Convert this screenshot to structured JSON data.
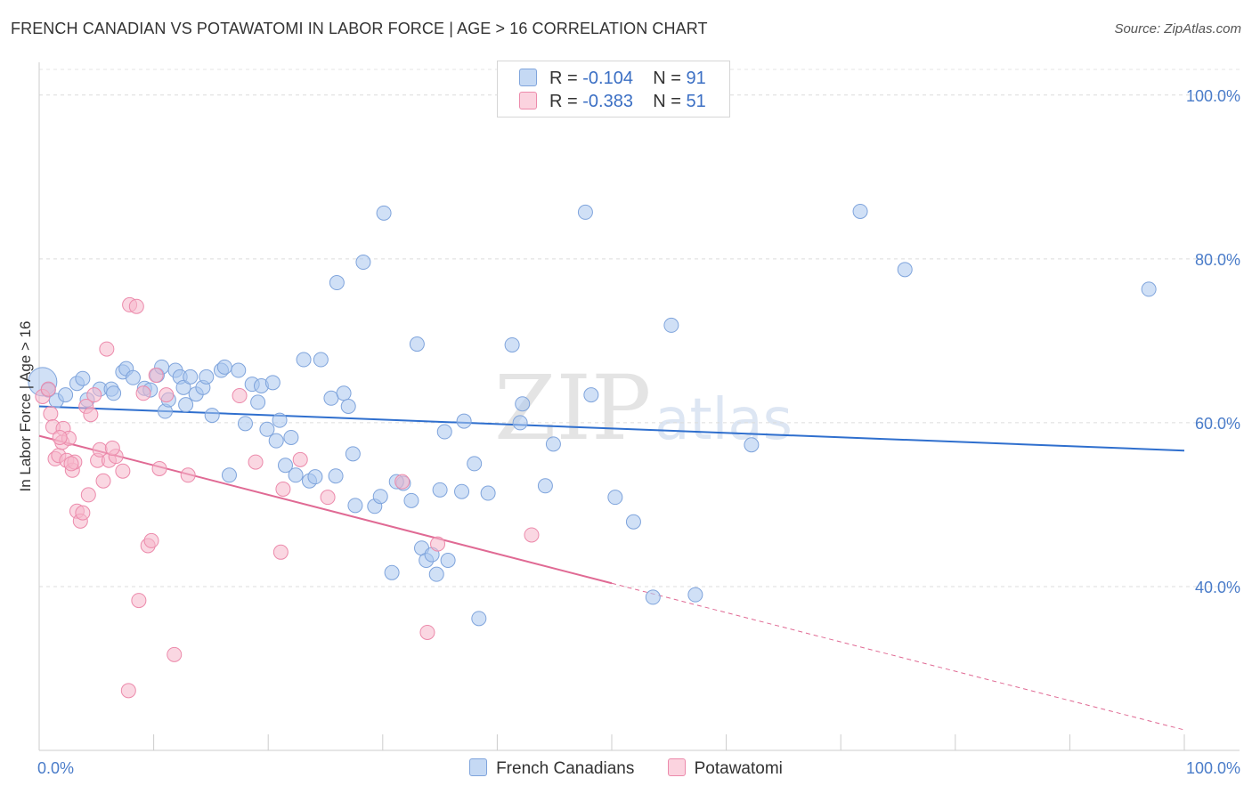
{
  "title": "FRENCH CANADIAN VS POTAWATOMI IN LABOR FORCE | AGE > 16 CORRELATION CHART",
  "source": "Source: ZipAtlas.com",
  "watermark": {
    "zip": "ZIP",
    "atlas": "atlas"
  },
  "legend": {
    "r_label": "R = ",
    "n_label": "N = ",
    "rows": [
      {
        "r": "-0.104",
        "n": "91"
      },
      {
        "r": "-0.383",
        "n": "51"
      }
    ]
  },
  "colors": {
    "blue_fill": "#a9c6ee",
    "blue_stroke": "#7fa4dc",
    "blue_line": "#2f6fce",
    "pink_fill": "#f6b7cb",
    "pink_stroke": "#ec8aab",
    "pink_line": "#e06a94"
  },
  "chart_data": {
    "type": "scatter",
    "title": "FRENCH CANADIAN VS POTAWATOMI IN LABOR FORCE | AGE > 16 CORRELATION CHART",
    "xlabel": "",
    "ylabel": "In Labor Force | Age > 16",
    "xlim": [
      0,
      100
    ],
    "ylim": [
      20,
      104
    ],
    "x_tick_labels": [
      "0.0%",
      "100.0%"
    ],
    "y_ticks": [
      40,
      60,
      80,
      100
    ],
    "y_tick_labels": [
      "40.0%",
      "60.0%",
      "80.0%",
      "100.0%"
    ],
    "grid": true,
    "legend_position": "top-center",
    "series": [
      {
        "name": "French Canadians",
        "color": "#a9c6ee",
        "trend": {
          "x0": 0,
          "y0": 62.0,
          "x1": 100,
          "y1": 56.6
        },
        "points": [
          [
            0.3,
            65.0
          ],
          [
            0.8,
            64.0
          ],
          [
            1.5,
            62.7
          ],
          [
            2.3,
            63.4
          ],
          [
            3.3,
            64.8
          ],
          [
            3.8,
            65.4
          ],
          [
            4.2,
            62.8
          ],
          [
            5.3,
            64.1
          ],
          [
            6.3,
            64.1
          ],
          [
            6.5,
            63.6
          ],
          [
            7.3,
            66.2
          ],
          [
            7.6,
            66.6
          ],
          [
            8.2,
            65.5
          ],
          [
            9.2,
            64.2
          ],
          [
            9.7,
            64.0
          ],
          [
            10.3,
            65.8
          ],
          [
            10.7,
            66.8
          ],
          [
            11.0,
            61.4
          ],
          [
            11.3,
            62.8
          ],
          [
            11.9,
            66.4
          ],
          [
            12.3,
            65.6
          ],
          [
            12.6,
            64.3
          ],
          [
            12.8,
            62.2
          ],
          [
            13.2,
            65.6
          ],
          [
            13.7,
            63.5
          ],
          [
            14.3,
            64.3
          ],
          [
            14.6,
            65.6
          ],
          [
            15.1,
            60.9
          ],
          [
            15.9,
            66.4
          ],
          [
            16.2,
            66.8
          ],
          [
            16.6,
            53.6
          ],
          [
            17.4,
            66.4
          ],
          [
            18.0,
            59.9
          ],
          [
            18.6,
            64.7
          ],
          [
            19.1,
            62.5
          ],
          [
            19.4,
            64.5
          ],
          [
            19.9,
            59.2
          ],
          [
            20.4,
            64.9
          ],
          [
            21.0,
            60.3
          ],
          [
            21.5,
            54.8
          ],
          [
            22.0,
            58.2
          ],
          [
            22.4,
            53.6
          ],
          [
            23.1,
            67.7
          ],
          [
            23.6,
            52.9
          ],
          [
            24.1,
            53.4
          ],
          [
            24.6,
            67.7
          ],
          [
            25.5,
            63.0
          ],
          [
            25.9,
            53.5
          ],
          [
            26.0,
            77.1
          ],
          [
            26.6,
            63.6
          ],
          [
            27.0,
            62.0
          ],
          [
            27.6,
            49.9
          ],
          [
            28.3,
            79.6
          ],
          [
            29.3,
            49.8
          ],
          [
            30.1,
            85.6
          ],
          [
            30.8,
            41.7
          ],
          [
            31.8,
            52.6
          ],
          [
            32.5,
            50.5
          ],
          [
            33.0,
            69.6
          ],
          [
            33.4,
            44.7
          ],
          [
            33.8,
            43.2
          ],
          [
            34.3,
            43.9
          ],
          [
            34.7,
            41.5
          ],
          [
            35.0,
            51.8
          ],
          [
            35.4,
            58.9
          ],
          [
            35.7,
            43.2
          ],
          [
            36.9,
            51.6
          ],
          [
            38.0,
            55.0
          ],
          [
            38.4,
            36.1
          ],
          [
            39.2,
            51.4
          ],
          [
            41.3,
            69.5
          ],
          [
            42.2,
            62.3
          ],
          [
            42.0,
            60.0
          ],
          [
            44.2,
            52.3
          ],
          [
            44.9,
            57.4
          ],
          [
            47.7,
            85.7
          ],
          [
            50.3,
            50.9
          ],
          [
            51.9,
            47.9
          ],
          [
            53.6,
            38.7
          ],
          [
            55.2,
            71.9
          ],
          [
            57.3,
            39.0
          ],
          [
            62.2,
            57.3
          ],
          [
            71.7,
            85.8
          ],
          [
            75.6,
            78.7
          ],
          [
            96.9,
            76.3
          ],
          [
            29.8,
            51.0
          ],
          [
            20.7,
            57.8
          ],
          [
            31.2,
            52.8
          ],
          [
            48.2,
            63.4
          ],
          [
            37.1,
            60.2
          ],
          [
            27.4,
            56.2
          ]
        ]
      },
      {
        "name": "Potawatomi",
        "color": "#f6b7cb",
        "trend": {
          "x0": 0,
          "y0": 58.4,
          "x1": 50,
          "y1": 40.4
        },
        "trend_extension": {
          "x0": 50,
          "y0": 40.4,
          "x1": 100,
          "y1": 22.5
        },
        "points": [
          [
            0.3,
            63.2
          ],
          [
            0.8,
            64.1
          ],
          [
            1.0,
            61.1
          ],
          [
            1.2,
            59.5
          ],
          [
            1.4,
            55.6
          ],
          [
            1.7,
            56.0
          ],
          [
            2.0,
            57.6
          ],
          [
            2.1,
            59.3
          ],
          [
            2.4,
            55.4
          ],
          [
            2.6,
            58.1
          ],
          [
            2.9,
            54.2
          ],
          [
            3.1,
            55.2
          ],
          [
            3.3,
            49.2
          ],
          [
            3.6,
            48.0
          ],
          [
            3.8,
            49.0
          ],
          [
            4.1,
            62.0
          ],
          [
            4.3,
            51.2
          ],
          [
            4.5,
            61.0
          ],
          [
            4.8,
            63.4
          ],
          [
            5.1,
            55.4
          ],
          [
            5.3,
            56.7
          ],
          [
            5.6,
            52.9
          ],
          [
            5.9,
            69.0
          ],
          [
            6.1,
            55.4
          ],
          [
            6.7,
            55.9
          ],
          [
            7.3,
            54.1
          ],
          [
            7.8,
            27.3
          ],
          [
            7.9,
            74.4
          ],
          [
            8.5,
            74.2
          ],
          [
            8.7,
            38.3
          ],
          [
            9.5,
            45.0
          ],
          [
            9.8,
            45.6
          ],
          [
            10.2,
            65.8
          ],
          [
            10.5,
            54.4
          ],
          [
            11.1,
            63.4
          ],
          [
            11.8,
            31.7
          ],
          [
            13.0,
            53.6
          ],
          [
            17.5,
            63.3
          ],
          [
            18.9,
            55.2
          ],
          [
            21.1,
            44.2
          ],
          [
            21.3,
            51.9
          ],
          [
            22.8,
            55.5
          ],
          [
            25.2,
            50.9
          ],
          [
            31.7,
            52.8
          ],
          [
            33.9,
            34.4
          ],
          [
            34.8,
            45.2
          ],
          [
            43.0,
            46.3
          ],
          [
            1.8,
            58.2
          ],
          [
            2.8,
            55.0
          ],
          [
            6.4,
            56.9
          ],
          [
            9.1,
            63.6
          ]
        ]
      }
    ]
  }
}
